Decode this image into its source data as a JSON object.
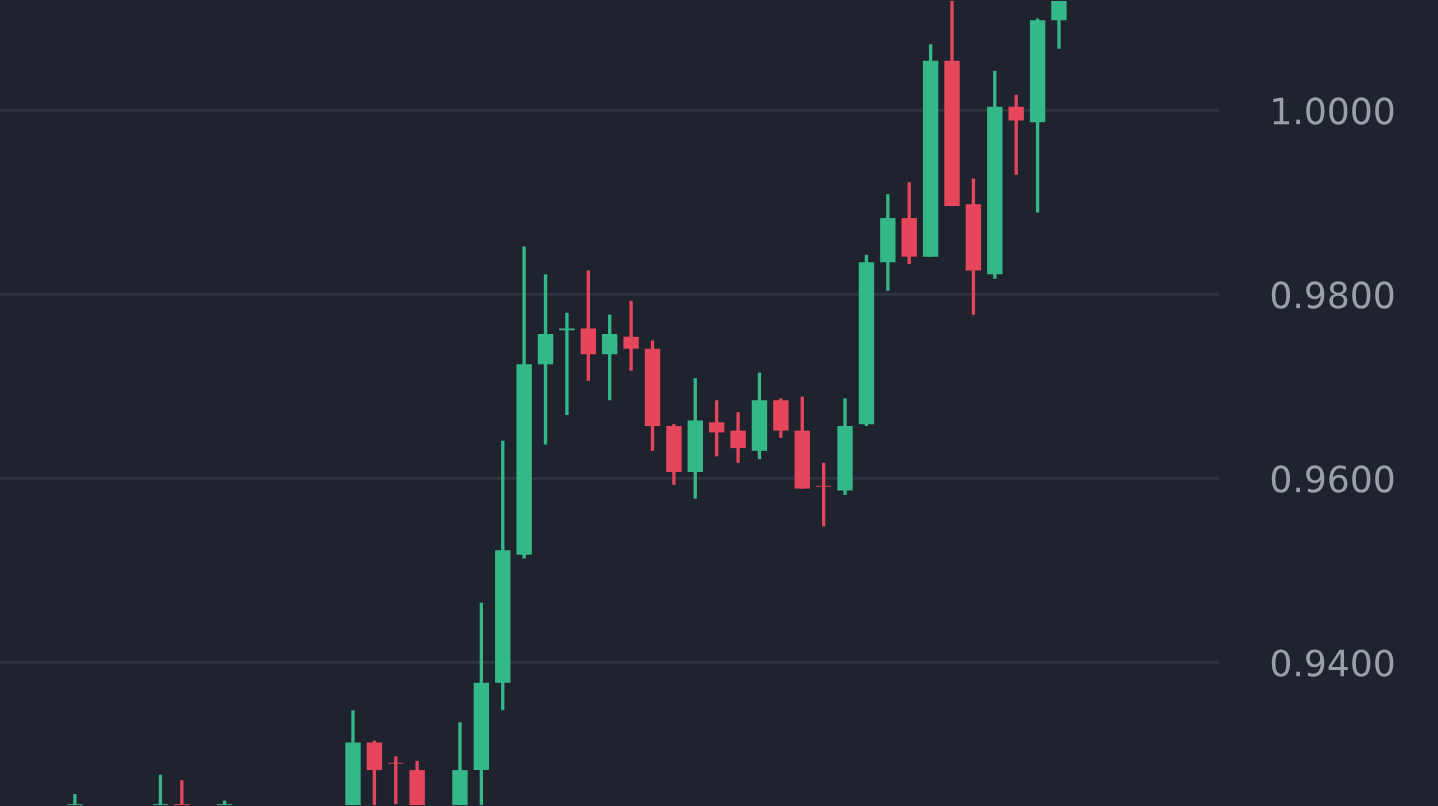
{
  "chart_data": {
    "type": "candlestick",
    "categories": [
      null,
      null,
      null,
      null,
      null,
      null,
      null,
      null,
      null,
      null,
      null,
      null,
      null,
      null,
      null,
      null,
      null,
      null,
      null,
      null,
      null,
      null,
      null,
      null,
      null,
      null,
      null,
      null,
      null,
      null,
      null,
      null,
      null,
      null,
      null,
      null,
      null,
      null,
      null,
      null,
      null,
      null,
      null,
      null,
      null,
      null,
      null,
      null,
      null,
      null,
      null,
      null,
      null,
      null,
      null,
      null,
      null
    ],
    "ohlc": [
      null,
      null,
      null,
      [
        0.9245,
        0.9257,
        0.9245,
        0.9246
      ],
      null,
      null,
      null,
      [
        0.9245,
        0.9278,
        0.9245,
        0.9246
      ],
      [
        0.9246,
        0.9272,
        0.9245,
        0.9245
      ],
      null,
      [
        0.9245,
        0.925,
        0.9245,
        0.9246
      ],
      null,
      null,
      null,
      null,
      null,
      [
        0.9245,
        0.9348,
        0.9245,
        0.9313
      ],
      [
        0.9313,
        0.9315,
        0.9245,
        0.9283
      ],
      [
        0.9291,
        0.9298,
        0.9246,
        0.929
      ],
      [
        0.9283,
        0.9293,
        0.9245,
        0.9245
      ],
      null,
      [
        0.9245,
        0.9335,
        0.9245,
        0.9283
      ],
      [
        0.9283,
        0.9465,
        0.9245,
        0.9378
      ],
      [
        0.9378,
        0.9641,
        0.9348,
        0.9522
      ],
      [
        0.9517,
        0.9852,
        0.9513,
        0.9724
      ],
      [
        0.9724,
        0.9822,
        0.9637,
        0.9757
      ],
      [
        0.9761,
        0.978,
        0.9669,
        0.9763
      ],
      [
        0.9763,
        0.9826,
        0.9706,
        0.9735
      ],
      [
        0.9735,
        0.9778,
        0.9685,
        0.9757
      ],
      [
        0.9754,
        0.9793,
        0.9717,
        0.9741
      ],
      [
        0.9741,
        0.975,
        0.963,
        0.9657
      ],
      [
        0.9657,
        0.9659,
        0.9593,
        0.9607
      ],
      [
        0.9607,
        0.9709,
        0.9578,
        0.9663
      ],
      [
        0.9661,
        0.9685,
        0.9624,
        0.965
      ],
      [
        0.9652,
        0.9672,
        0.9617,
        0.9633
      ],
      [
        0.963,
        0.9715,
        0.9621,
        0.9685
      ],
      [
        0.9685,
        0.9687,
        0.9644,
        0.9652
      ],
      [
        0.9652,
        0.9689,
        0.9589,
        0.9589
      ],
      [
        0.9592,
        0.9617,
        0.9548,
        0.9591
      ],
      [
        0.9587,
        0.9687,
        0.9582,
        0.9657
      ],
      [
        0.9659,
        0.9843,
        0.9657,
        0.9835
      ],
      [
        0.9835,
        0.9909,
        0.9804,
        0.9883
      ],
      [
        0.9883,
        0.9922,
        0.9833,
        0.9841
      ],
      [
        0.9841,
        1.0072,
        0.9841,
        1.0054
      ],
      [
        1.0054,
        1.0119,
        0.9896,
        0.9896
      ],
      [
        0.9898,
        0.9926,
        0.9778,
        0.9826
      ],
      [
        0.9822,
        1.0043,
        0.9817,
        1.0004
      ],
      [
        1.0004,
        1.0017,
        0.993,
        0.9989
      ],
      [
        0.9987,
        1.01,
        0.9889,
        1.0098
      ],
      [
        1.0098,
        1.0119,
        1.0067,
        1.0119
      ],
      null,
      null,
      null,
      null,
      null,
      null,
      null
    ],
    "colors": [
      null,
      null,
      null,
      "#34b887",
      null,
      null,
      null,
      "#34b887",
      "#e5465b",
      null,
      "#34b887",
      null,
      null,
      null,
      null,
      null,
      "#34b887",
      "#e5465b",
      "#e5465b",
      "#e5465b",
      null,
      "#34b887",
      "#34b887",
      "#34b887",
      "#34b887",
      "#34b887",
      "#34b887",
      "#e5465b",
      "#34b887",
      "#e5465b",
      "#e5465b",
      "#e5465b",
      "#34b887",
      "#e5465b",
      "#e5465b",
      "#34b887",
      "#e5465b",
      "#e5465b",
      "#e5465b",
      "#34b887",
      "#34b887",
      "#34b887",
      "#e5465b",
      "#34b887",
      "#e5465b",
      "#e5465b",
      "#34b887",
      "#e5465b",
      "#34b887",
      "#34b887",
      null,
      null,
      null,
      null,
      null,
      null,
      null
    ],
    "ylim": [
      0.9244,
      1.012
    ],
    "yticks": [
      {
        "value": 0.94,
        "label": "0.9400"
      },
      {
        "value": 0.96,
        "label": "0.9600"
      },
      {
        "value": 0.98,
        "label": "0.9800"
      },
      {
        "value": 1.0,
        "label": "1.0000"
      }
    ],
    "grid": "y",
    "tick_labels": "y"
  }
}
